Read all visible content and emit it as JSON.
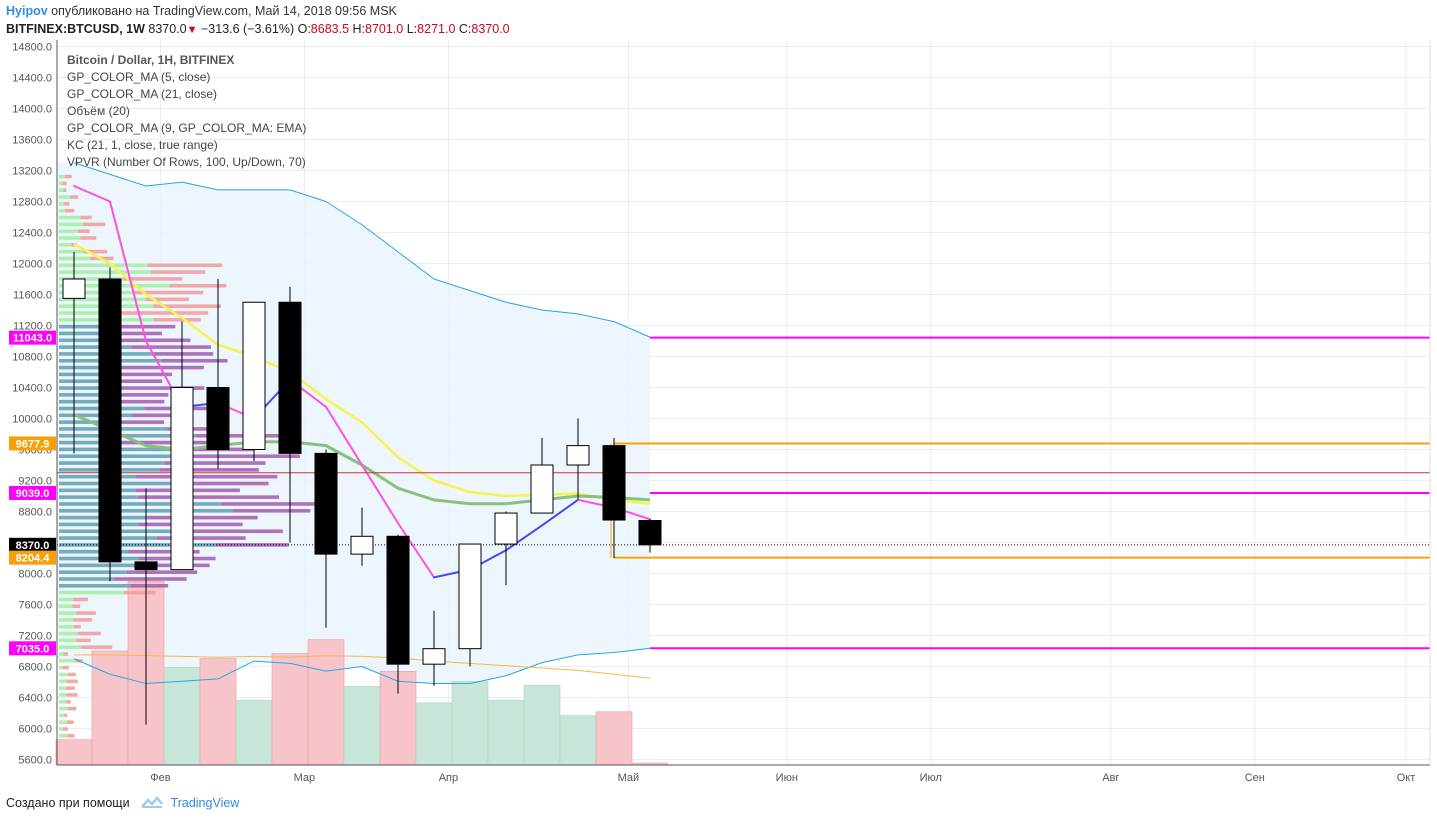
{
  "header": {
    "author": "Hyipov",
    "published_text": "опубликовано на TradingView.com, Май 14, 2018 09:56 MSK",
    "symbol": "BITFINEX:BTCUSD, 1W",
    "last_price": "8370.0",
    "change": "−313.6 (−3.61%)",
    "open_label": "O:",
    "open": "8683.5",
    "high_label": "H:",
    "high": "8701.0",
    "low_label": "L:",
    "low": "8271.0",
    "close_label": "C:",
    "close": "8370.0"
  },
  "legend": {
    "title": "Bitcoin / Dollar, 1H, BITFINEX",
    "items": [
      "GP_COLOR_MA (5, close)",
      "GP_COLOR_MA (21, close)",
      "Объём (20)",
      "GP_COLOR_MA (9, GP_COLOR_MA: EMA)",
      "KC (21, 1, close, true range)",
      "VPVR (Number Of Rows, 100, Up/Down, 70)"
    ]
  },
  "footer": {
    "created_with": "Создано при помощи",
    "brand": "TradingView"
  },
  "colors": {
    "up_candle": "#ffffff",
    "down_candle": "#000000",
    "magenta": "#ff00ff",
    "orange": "#f7a10a",
    "red_line": "#d32f2f",
    "kc_band": "#29a5e6",
    "kc_fill": "#e9f4fc",
    "ma_yellow": "#f7f34e",
    "ma_green": "#86c17e",
    "ma5_pink": "#ff4fe5",
    "ma5_blue": "#4a48f0",
    "vol_up": "#c7e6d7",
    "vol_down": "#f7c5c9",
    "vpvr_up_green": "#9ff09f",
    "vpvr_up_teal": "#5f9fb3",
    "vpvr_down_red": "#f29a9a",
    "vpvr_down_purple": "#a25aaf"
  },
  "chart_data": {
    "type": "candlestick",
    "y_axis_ticks": [
      5600,
      6000,
      6400,
      6800,
      7200,
      7600,
      8000,
      8400,
      8800,
      9200,
      9600,
      10000,
      10400,
      10800,
      11200,
      11600,
      12000,
      12400,
      12800,
      13200,
      13600,
      14000,
      14400,
      14800
    ],
    "y_axis_labels": [
      "5600.0",
      "6000.0",
      "6400.0",
      "6800.0",
      "7200.0",
      "7600.0",
      "8000.0",
      "8400.0",
      "8800.0",
      "9200.0",
      "9600.0",
      "10000.0",
      "10400.0",
      "10800.0",
      "11200.0",
      "11600.0",
      "12000.0",
      "12400.0",
      "12800.0",
      "13200.0",
      "13600.0",
      "14000.0",
      "14400.0",
      "14800.0"
    ],
    "ylim": [
      5500,
      14850
    ],
    "x_labels": [
      {
        "label": "Фев",
        "week": 2.4
      },
      {
        "label": "Мар",
        "week": 6.4
      },
      {
        "label": "Апр",
        "week": 10.4
      },
      {
        "label": "Май",
        "week": 15.4
      },
      {
        "label": "Июн",
        "week": 19.8
      },
      {
        "label": "Июл",
        "week": 23.8
      },
      {
        "label": "Авг",
        "week": 28.8
      },
      {
        "label": "Сен",
        "week": 32.8
      },
      {
        "label": "Окт",
        "week": 37.0
      }
    ],
    "xlim": [
      -0.95,
      37.8
    ],
    "candles": [
      {
        "o": 11550,
        "h": 12150,
        "l": 9550,
        "c": 11800
      },
      {
        "o": 11800,
        "h": 11950,
        "l": 7900,
        "c": 8150
      },
      {
        "o": 8150,
        "h": 9100,
        "l": 6050,
        "c": 8050
      },
      {
        "o": 8050,
        "h": 11250,
        "l": 8050,
        "c": 10400
      },
      {
        "o": 10400,
        "h": 11800,
        "l": 9350,
        "c": 9600
      },
      {
        "o": 9600,
        "h": 11500,
        "l": 9450,
        "c": 11500
      },
      {
        "o": 11500,
        "h": 11700,
        "l": 8400,
        "c": 9550
      },
      {
        "o": 9550,
        "h": 9600,
        "l": 7300,
        "c": 8250
      },
      {
        "o": 8250,
        "h": 8850,
        "l": 8100,
        "c": 8480
      },
      {
        "o": 8480,
        "h": 8500,
        "l": 6450,
        "c": 6830
      },
      {
        "o": 6830,
        "h": 7520,
        "l": 6550,
        "c": 7030
      },
      {
        "o": 7030,
        "h": 8380,
        "l": 6800,
        "c": 8380
      },
      {
        "o": 8380,
        "h": 8800,
        "l": 7850,
        "c": 8780
      },
      {
        "o": 8780,
        "h": 9750,
        "l": 8780,
        "c": 9400
      },
      {
        "o": 9400,
        "h": 10000,
        "l": 8950,
        "c": 9650
      },
      {
        "o": 9650,
        "h": 9750,
        "l": 8200,
        "c": 8690
      },
      {
        "o": 8683.5,
        "h": 8701,
        "l": 8271,
        "c": 8370
      }
    ],
    "volume": {
      "values": [
        2.0,
        9.0,
        14.5,
        7.7,
        8.4,
        5.1,
        8.8,
        9.9,
        6.2,
        7.4,
        4.9,
        6.6,
        5.1,
        6.3,
        3.9,
        4.2,
        0.15
      ],
      "directions": [
        "down",
        "down",
        "down",
        "up",
        "down",
        "up",
        "down",
        "down",
        "up",
        "down",
        "up",
        "up",
        "up",
        "up",
        "up",
        "down",
        "down"
      ],
      "max": 15.0
    },
    "series": [
      {
        "name": "GP_COLOR_MA (5, close)",
        "values": [
          13000,
          12800,
          11000,
          10150,
          10200,
          10000,
          10500,
          10150,
          9400,
          8650,
          7950,
          8050,
          8300,
          8620,
          8950,
          8850,
          8700
        ]
      },
      {
        "name": "GP_COLOR_MA (21, close)",
        "values": [
          12250,
          12000,
          11600,
          11300,
          10950,
          10800,
          10600,
          10250,
          9950,
          9500,
          9200,
          9050,
          9000,
          9020,
          9030,
          8950,
          8900
        ]
      },
      {
        "name": "GP_COLOR_MA (9, GP_COLOR_MA: EMA)",
        "values": [
          10050,
          9850,
          9650,
          9600,
          9650,
          9700,
          9700,
          9650,
          9400,
          9100,
          8950,
          8900,
          8900,
          8950,
          9000,
          8980,
          8950
        ]
      },
      {
        "name": "KC upper",
        "values": [
          13300,
          13150,
          13000,
          13050,
          12950,
          12950,
          12950,
          12800,
          12500,
          12150,
          11800,
          11650,
          11500,
          11400,
          11350,
          11250,
          11050
        ]
      },
      {
        "name": "KC lower",
        "values": [
          6900,
          6700,
          6580,
          6610,
          6640,
          6870,
          6840,
          6740,
          6800,
          6610,
          6580,
          6580,
          6680,
          6850,
          6950,
          6980,
          7035
        ]
      },
      {
        "name": "Volume MA",
        "values": [
          6950,
          6950,
          6940,
          6930,
          6920,
          6930,
          6920,
          6940,
          6930,
          6910,
          6870,
          6840,
          6810,
          6780,
          6750,
          6700,
          6650
        ]
      }
    ],
    "horizontal_levels": [
      {
        "price": 11043.0,
        "label": "11043.0",
        "color_key": "magenta",
        "from_week": 16
      },
      {
        "price": 9677.9,
        "label": "9677.9",
        "color_key": "orange",
        "from_week": 15
      },
      {
        "price": 9300,
        "color_key": "red_line",
        "from_week": -1
      },
      {
        "price": 9039.0,
        "label": "9039.0",
        "color_key": "magenta",
        "from_week": 16
      },
      {
        "price": 8370.0,
        "label": "8370.0",
        "color_key": "black",
        "dotted": true,
        "from_week": -1
      },
      {
        "price": 8204.4,
        "label": "8204.4",
        "color_key": "orange",
        "from_week": 15
      },
      {
        "price": 7035.0,
        "label": "7035.0",
        "color_key": "magenta",
        "from_week": 16
      }
    ]
  }
}
